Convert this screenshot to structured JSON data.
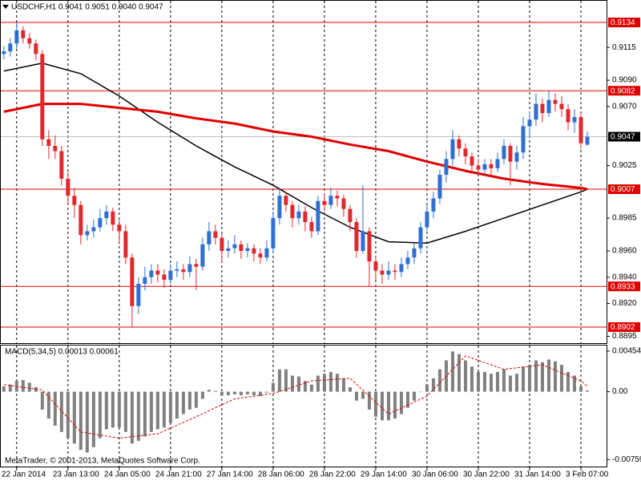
{
  "chart_data": [
    {
      "type": "candlestick",
      "title": "USDCHF,H1  0.9041 0.9051 0.9040 0.9047",
      "open": [
        0.911,
        0.9112,
        0.9118,
        0.9128,
        0.9122,
        0.9118,
        0.911,
        0.9045,
        0.904,
        0.9036,
        0.9015,
        0.9002,
        0.8995,
        0.8972,
        0.8975,
        0.8978,
        0.8985,
        0.899,
        0.898,
        0.8975,
        0.8955,
        0.8918,
        0.8935,
        0.894,
        0.8945,
        0.8942,
        0.8938,
        0.8945,
        0.8946,
        0.8944,
        0.895,
        0.8948,
        0.8965,
        0.8975,
        0.897,
        0.896,
        0.8962,
        0.8965,
        0.896,
        0.8962,
        0.8958,
        0.8955,
        0.8962,
        0.8985,
        0.9002,
        0.8995,
        0.8985,
        0.899,
        0.8982,
        0.8975,
        0.8998,
        0.8995,
        0.9002,
        0.9,
        0.8992,
        0.8982,
        0.896,
        0.8975,
        0.8952,
        0.8945,
        0.8942,
        0.8945,
        0.8944,
        0.895,
        0.8955,
        0.8962,
        0.8978,
        0.899,
        0.9,
        0.9018,
        0.903,
        0.9045,
        0.9038,
        0.9032,
        0.9025,
        0.9022,
        0.9026,
        0.9023,
        0.903,
        0.904,
        0.9028,
        0.9035,
        0.9055,
        0.906,
        0.9072,
        0.9065,
        0.9075,
        0.9072,
        0.9068,
        0.9058,
        0.9062,
        0.9041
      ],
      "high": [
        0.9116,
        0.9122,
        0.9134,
        0.9131,
        0.9126,
        0.9121,
        0.9113,
        0.9052,
        0.9048,
        0.904,
        0.902,
        0.9008,
        0.8998,
        0.898,
        0.8984,
        0.8992,
        0.8995,
        0.8993,
        0.8985,
        0.898,
        0.8958,
        0.894,
        0.8948,
        0.895,
        0.895,
        0.8946,
        0.895,
        0.8952,
        0.895,
        0.8956,
        0.8954,
        0.897,
        0.8982,
        0.898,
        0.8974,
        0.8968,
        0.8972,
        0.8968,
        0.8966,
        0.8965,
        0.8962,
        0.8968,
        0.899,
        0.9008,
        0.9005,
        0.8998,
        0.8995,
        0.8994,
        0.8986,
        0.9002,
        0.9004,
        0.9008,
        0.9006,
        0.9003,
        0.8995,
        0.8985,
        0.901,
        0.8978,
        0.8956,
        0.895,
        0.8952,
        0.895,
        0.8955,
        0.896,
        0.8966,
        0.8982,
        0.8995,
        0.9005,
        0.9022,
        0.9036,
        0.9052,
        0.9048,
        0.9042,
        0.9035,
        0.903,
        0.903,
        0.903,
        0.9035,
        0.9045,
        0.9042,
        0.904,
        0.9062,
        0.9066,
        0.908,
        0.9076,
        0.9082,
        0.908,
        0.9078,
        0.9072,
        0.9068,
        0.9065,
        0.9051
      ],
      "low": [
        0.9106,
        0.9108,
        0.9114,
        0.9118,
        0.9114,
        0.9105,
        0.904,
        0.903,
        0.903,
        0.901,
        0.8995,
        0.8985,
        0.8965,
        0.8968,
        0.897,
        0.8975,
        0.898,
        0.8975,
        0.8965,
        0.895,
        0.8902,
        0.8912,
        0.893,
        0.8935,
        0.8936,
        0.8932,
        0.8935,
        0.894,
        0.8938,
        0.894,
        0.893,
        0.8945,
        0.896,
        0.8965,
        0.8952,
        0.8955,
        0.8958,
        0.8954,
        0.8955,
        0.8952,
        0.895,
        0.8952,
        0.8958,
        0.898,
        0.899,
        0.8978,
        0.898,
        0.8975,
        0.897,
        0.8972,
        0.899,
        0.8992,
        0.8994,
        0.8986,
        0.8975,
        0.8955,
        0.8958,
        0.8933,
        0.8938,
        0.8935,
        0.8938,
        0.8938,
        0.894,
        0.8946,
        0.895,
        0.8958,
        0.8975,
        0.8985,
        0.8996,
        0.9012,
        0.9025,
        0.9032,
        0.9026,
        0.902,
        0.9018,
        0.9018,
        0.9018,
        0.902,
        0.9026,
        0.901,
        0.9022,
        0.903,
        0.9048,
        0.9055,
        0.9058,
        0.9062,
        0.9066,
        0.9062,
        0.9052,
        0.905,
        0.9038,
        0.904
      ],
      "close": [
        0.9112,
        0.9118,
        0.9128,
        0.9122,
        0.9118,
        0.911,
        0.9045,
        0.904,
        0.9036,
        0.9015,
        0.9002,
        0.8995,
        0.8972,
        0.8975,
        0.8978,
        0.8985,
        0.899,
        0.898,
        0.8975,
        0.8955,
        0.8918,
        0.8935,
        0.894,
        0.8945,
        0.8942,
        0.8938,
        0.8945,
        0.8946,
        0.8944,
        0.895,
        0.8948,
        0.8965,
        0.8975,
        0.897,
        0.896,
        0.8962,
        0.8965,
        0.896,
        0.8962,
        0.8958,
        0.8955,
        0.8962,
        0.8985,
        0.9002,
        0.8995,
        0.8985,
        0.899,
        0.8982,
        0.8975,
        0.8998,
        0.8995,
        0.9002,
        0.9,
        0.8992,
        0.8982,
        0.896,
        0.8975,
        0.8952,
        0.8945,
        0.8942,
        0.8945,
        0.8944,
        0.895,
        0.8955,
        0.8962,
        0.8978,
        0.899,
        0.9,
        0.9018,
        0.903,
        0.9045,
        0.9038,
        0.9032,
        0.9025,
        0.9022,
        0.9026,
        0.9023,
        0.903,
        0.904,
        0.9028,
        0.9035,
        0.9055,
        0.906,
        0.9072,
        0.9065,
        0.9075,
        0.9072,
        0.9068,
        0.9058,
        0.9062,
        0.9042,
        0.9047
      ],
      "bull_color": "#2f6fd0",
      "bear_color": "#e0282d",
      "xlim": [
        -0.6,
        94
      ],
      "xticks": [
        {
          "value": 2,
          "label": "22 Jan 2014"
        },
        {
          "value": 10,
          "label": "23 Jan 13:00"
        },
        {
          "value": 18,
          "label": "24 Jan 05:00"
        },
        {
          "value": 26,
          "label": "24 Jan 21:00"
        },
        {
          "value": 34,
          "label": "27 Jan 14:00"
        },
        {
          "value": 42,
          "label": "28 Jan 06:00"
        },
        {
          "value": 50,
          "label": "28 Jan 22:00"
        },
        {
          "value": 58,
          "label": "29 Jan 14:00"
        },
        {
          "value": 66,
          "label": "30 Jan 06:00"
        },
        {
          "value": 74,
          "label": "30 Jan 22:00"
        },
        {
          "value": 82,
          "label": "31 Jan 14:00"
        },
        {
          "value": 90,
          "label": "3 Feb 07:00"
        }
      ],
      "ylim": [
        0.88898,
        0.91505
      ],
      "yticks": [
        0.9115,
        {
          "value": 0.909,
          "label": "0.9090"
        },
        {
          "value": 0.907,
          "label": "0.9070"
        },
        0.9025,
        0.8985,
        {
          "value": 0.896,
          "label": "0.8960"
        },
        {
          "value": 0.894,
          "label": "0.8940"
        },
        {
          "value": 0.892,
          "label": "0.8920"
        },
        0.8895
      ],
      "levels": [
        0.9134,
        0.9082,
        0.9007,
        0.8933,
        0.8902
      ],
      "level_color": "#e00000",
      "last_price": 0.9047,
      "moving_averages": [
        {
          "color": "#000000",
          "x": [
            0,
            6,
            12,
            18,
            24,
            30,
            36,
            42,
            48,
            54,
            60,
            66,
            72,
            78,
            84,
            90,
            91
          ],
          "values": [
            0.9097,
            0.9103,
            0.9095,
            0.9078,
            0.9058,
            0.904,
            0.9024,
            0.901,
            0.8993,
            0.8978,
            0.8967,
            0.8966,
            0.8975,
            0.8985,
            0.8995,
            0.9005,
            0.9007
          ]
        },
        {
          "color": "#e00000",
          "x": [
            0,
            6,
            12,
            18,
            24,
            30,
            36,
            42,
            48,
            54,
            60,
            66,
            72,
            78,
            84,
            90,
            91
          ],
          "values": [
            0.9066,
            0.9072,
            0.9072,
            0.9069,
            0.9066,
            0.9061,
            0.9057,
            0.9051,
            0.9047,
            0.9041,
            0.9036,
            0.9028,
            0.9021,
            0.9015,
            0.9011,
            0.9008,
            0.9007
          ]
        }
      ],
      "grid": "vertical"
    },
    {
      "type": "bar",
      "title": "MACD(5,34,5) 0.00013 0.00061",
      "values": [
        0.0006,
        0.0008,
        0.0012,
        0.0013,
        0.001,
        0.0005,
        -0.002,
        -0.003,
        -0.0038,
        -0.0045,
        -0.0052,
        -0.0058,
        -0.0065,
        -0.0068,
        -0.0062,
        -0.0052,
        -0.0042,
        -0.004,
        -0.004,
        -0.0045,
        -0.0058,
        -0.0055,
        -0.005,
        -0.0045,
        -0.0042,
        -0.004,
        -0.0035,
        -0.003,
        -0.0025,
        -0.002,
        -0.0018,
        -0.0008,
        0.0002,
        0.0001,
        -0.0004,
        -0.0004,
        -0.0003,
        -0.0004,
        -0.0003,
        -0.0004,
        -0.0005,
        -0.0001,
        0.001,
        0.0025,
        0.0025,
        0.0018,
        0.0017,
        0.0012,
        0.0008,
        0.0018,
        0.002,
        0.0022,
        0.002,
        0.0015,
        0.0005,
        -0.001,
        -0.0008,
        -0.002,
        -0.0028,
        -0.0032,
        -0.0032,
        -0.003,
        -0.0025,
        -0.0018,
        -0.001,
        0.0,
        0.0008,
        0.0015,
        0.0025,
        0.0035,
        0.0045,
        0.0042,
        0.0035,
        0.0028,
        0.0022,
        0.0022,
        0.002,
        0.0022,
        0.0025,
        0.0018,
        0.002,
        0.0028,
        0.003,
        0.0035,
        0.0033,
        0.0036,
        0.0034,
        0.003,
        0.0022,
        0.0018,
        0.0006,
        0.00013
      ],
      "color": "#808080",
      "signal": {
        "color": "#e00000",
        "x": [
          0,
          6,
          12,
          18,
          24,
          30,
          36,
          42,
          48,
          54,
          60,
          66,
          72,
          78,
          84,
          90,
          91
        ],
        "values": [
          0.0008,
          0.0002,
          -0.0045,
          -0.0052,
          -0.0047,
          -0.0028,
          -0.0008,
          -0.0002,
          0.0012,
          0.0015,
          -0.0025,
          -0.0005,
          0.004,
          0.0025,
          0.003,
          0.0012,
          0.00061
        ]
      },
      "ylim": [
        -0.00837,
        0.00516
      ],
      "yticks": [
        0.00454,
        {
          "value": 0,
          "label": "0.00"
        },
        -0.00759
      ],
      "annotation": "MetaTrader, © 2001-2013, MetaQuotes Software Corp."
    }
  ]
}
